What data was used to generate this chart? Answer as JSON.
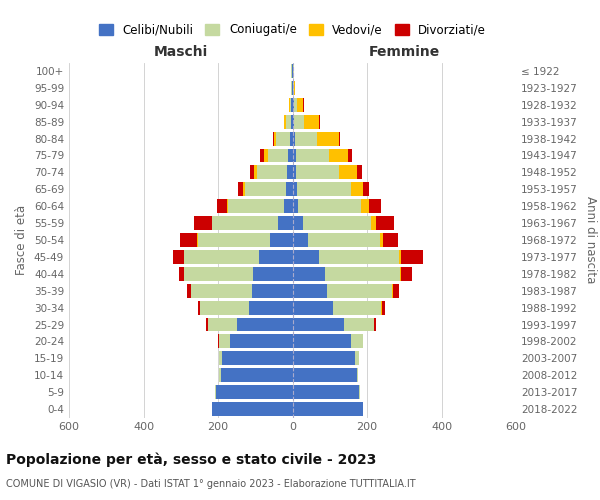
{
  "age_groups": [
    "0-4",
    "5-9",
    "10-14",
    "15-19",
    "20-24",
    "25-29",
    "30-34",
    "35-39",
    "40-44",
    "45-49",
    "50-54",
    "55-59",
    "60-64",
    "65-69",
    "70-74",
    "75-79",
    "80-84",
    "85-89",
    "90-94",
    "95-99",
    "100+"
  ],
  "birth_years": [
    "2018-2022",
    "2013-2017",
    "2008-2012",
    "2003-2007",
    "1998-2002",
    "1993-1997",
    "1988-1992",
    "1983-1987",
    "1978-1982",
    "1973-1977",
    "1968-1972",
    "1963-1967",
    "1958-1962",
    "1953-1957",
    "1948-1952",
    "1943-1947",
    "1938-1942",
    "1933-1937",
    "1928-1932",
    "1923-1927",
    "≤ 1922"
  ],
  "maschi": {
    "celibi": [
      215,
      205,
      192,
      188,
      168,
      148,
      118,
      108,
      105,
      90,
      60,
      40,
      22,
      18,
      15,
      12,
      8,
      5,
      3,
      2,
      2
    ],
    "coniugati": [
      1,
      2,
      5,
      10,
      30,
      80,
      130,
      165,
      185,
      200,
      195,
      175,
      150,
      110,
      80,
      55,
      35,
      12,
      5,
      2,
      1
    ],
    "vedovi": [
      0,
      0,
      0,
      0,
      0,
      0,
      0,
      0,
      1,
      1,
      2,
      2,
      3,
      5,
      8,
      10,
      8,
      5,
      2,
      0,
      0
    ],
    "divorziati": [
      0,
      0,
      0,
      0,
      1,
      3,
      5,
      10,
      15,
      30,
      45,
      48,
      28,
      14,
      12,
      10,
      2,
      2,
      0,
      0,
      0
    ]
  },
  "femmine": {
    "nubili": [
      188,
      178,
      172,
      168,
      158,
      138,
      108,
      92,
      88,
      72,
      42,
      28,
      15,
      12,
      10,
      10,
      8,
      5,
      3,
      2,
      2
    ],
    "coniugate": [
      1,
      2,
      5,
      10,
      30,
      80,
      130,
      175,
      200,
      215,
      192,
      182,
      168,
      145,
      115,
      88,
      58,
      25,
      8,
      2,
      1
    ],
    "vedove": [
      0,
      0,
      0,
      0,
      0,
      1,
      1,
      2,
      3,
      5,
      8,
      14,
      22,
      32,
      48,
      52,
      58,
      42,
      18,
      3,
      1
    ],
    "divorziate": [
      0,
      0,
      0,
      1,
      2,
      5,
      8,
      18,
      30,
      58,
      42,
      48,
      32,
      16,
      14,
      10,
      3,
      2,
      1,
      0,
      0
    ]
  },
  "colors": {
    "celibi_nubili": "#4472c4",
    "coniugati": "#c5d9a0",
    "vedovi": "#ffc000",
    "divorziati": "#cc0000"
  },
  "title": "Popolazione per età, sesso e stato civile - 2023",
  "subtitle": "COMUNE DI VIGASIO (VR) - Dati ISTAT 1° gennaio 2023 - Elaborazione TUTTITALIA.IT",
  "xlabel_left": "Maschi",
  "xlabel_right": "Femmine",
  "ylabel_left": "Fasce di età",
  "ylabel_right": "Anni di nascita",
  "xlim": 600,
  "background_color": "#ffffff",
  "grid_color": "#cccccc"
}
